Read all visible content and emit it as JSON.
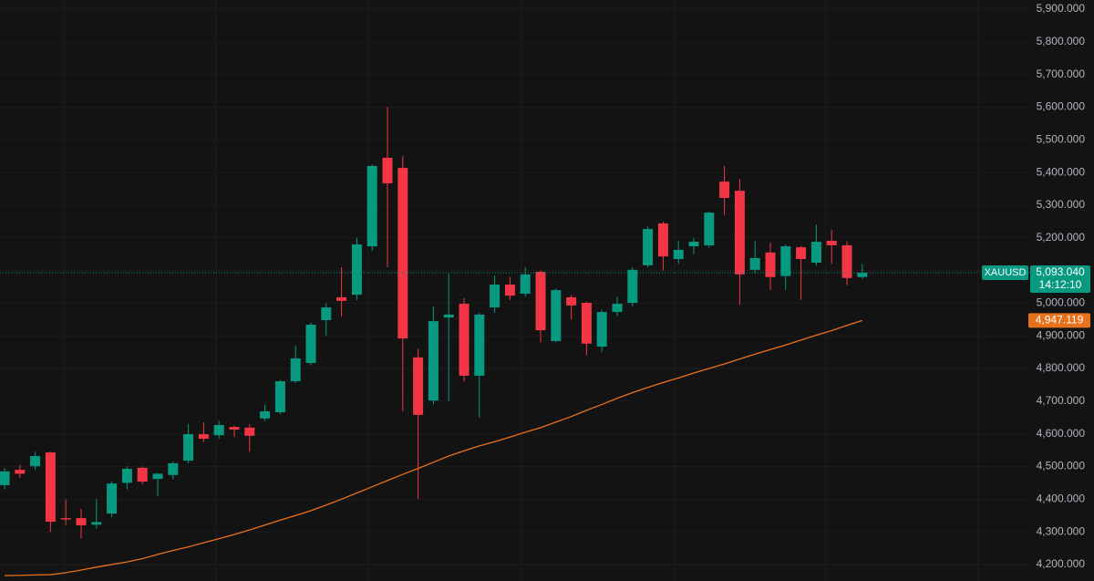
{
  "chart_data": {
    "type": "candlestick",
    "symbol": "XAUUSD",
    "countdown": "14:12:10",
    "categories": [
      null,
      null,
      null,
      null,
      null,
      null,
      null,
      null,
      null,
      null,
      null,
      null,
      null,
      null,
      null,
      null,
      null,
      null,
      null,
      null,
      null,
      null,
      null,
      null,
      null,
      null,
      null,
      null,
      null,
      null,
      null,
      null,
      null,
      null,
      null,
      null,
      null,
      null,
      null,
      null,
      null,
      null,
      null,
      null,
      null,
      null,
      null,
      null,
      null,
      null,
      null,
      null,
      null,
      null,
      null,
      null,
      null
    ],
    "open": [
      4443,
      4490,
      4501,
      4543,
      4342,
      4342,
      4322,
      4356,
      4450,
      4496,
      4462,
      4474,
      4518,
      4599,
      4596,
      4621,
      4619,
      4647,
      4666,
      4761,
      4817,
      4948,
      5018,
      5026,
      5174,
      5445,
      5414,
      4834,
      4702,
      4956,
      4998,
      4778,
      4987,
      5057,
      5029,
      5096,
      4884,
      5018,
      5001,
      4867,
      4973,
      5001,
      5116,
      5244,
      5135,
      5174,
      5177,
      5372,
      5344,
      5102,
      5155,
      5083,
      5171,
      5124,
      5191,
      5177,
      5080
    ],
    "high": [
      4495,
      4505,
      4545,
      4545,
      4400,
      4370,
      4400,
      4455,
      4500,
      4500,
      4480,
      4515,
      4630,
      4635,
      4640,
      4625,
      4630,
      4690,
      4765,
      4870,
      4940,
      5000,
      5110,
      5200,
      5425,
      5600,
      5450,
      4860,
      4990,
      5090,
      5015,
      4970,
      5085,
      5080,
      5110,
      5100,
      5045,
      5025,
      5005,
      4980,
      5020,
      5110,
      5235,
      5250,
      5190,
      5200,
      5280,
      5420,
      5380,
      5190,
      5185,
      5180,
      5175,
      5240,
      5225,
      5190,
      5120
    ],
    "low": [
      4430,
      4465,
      4490,
      4300,
      4320,
      4280,
      4310,
      4345,
      4430,
      4445,
      4410,
      4460,
      4510,
      4575,
      4585,
      4590,
      4545,
      4640,
      4660,
      4755,
      4810,
      4900,
      4960,
      5010,
      5160,
      5110,
      4670,
      4400,
      4690,
      4700,
      4760,
      4650,
      4970,
      5010,
      5020,
      4880,
      4880,
      4950,
      4840,
      4850,
      4960,
      4990,
      5110,
      5100,
      5120,
      5150,
      5170,
      5270,
      4995,
      5090,
      5040,
      5040,
      5010,
      5115,
      5120,
      5055,
      5075
    ],
    "close": [
      4485,
      4478,
      4532,
      4331,
      4338,
      4320,
      4330,
      4448,
      4493,
      4454,
      4478,
      4510,
      4599,
      4585,
      4627,
      4613,
      4594,
      4669,
      4761,
      4831,
      4934,
      4987,
      5007,
      5180,
      5420,
      5367,
      4892,
      4658,
      4945,
      4965,
      4778,
      4965,
      5057,
      5023,
      5088,
      4917,
      5040,
      4993,
      4876,
      4973,
      4998,
      5102,
      5227,
      5143,
      5163,
      5188,
      5277,
      5322,
      5088,
      5138,
      5080,
      5174,
      5135,
      5188,
      5177,
      5077,
      5093.04
    ],
    "up_color": "#089981",
    "down_color": "#f23645",
    "ma": {
      "color": "#e8711c",
      "values": [
        4166,
        4167,
        4168,
        4169,
        4175,
        4183,
        4192,
        4200,
        4208,
        4218,
        4231,
        4243,
        4254,
        4267,
        4279,
        4292,
        4306,
        4321,
        4336,
        4350,
        4365,
        4382,
        4400,
        4419,
        4438,
        4457,
        4476,
        4494,
        4513,
        4532,
        4548,
        4563,
        4576,
        4590,
        4605,
        4619,
        4636,
        4653,
        4672,
        4690,
        4709,
        4726,
        4742,
        4757,
        4771,
        4786,
        4800,
        4814,
        4829,
        4844,
        4858,
        4872,
        4887,
        4902,
        4916,
        4932,
        4947.119
      ],
      "last_label": {
        "value": 4947.119,
        "label": "4,947.119"
      }
    },
    "last_price": {
      "value": 5093.04,
      "label": "5,093.040"
    },
    "ylim": [
      4149.6,
      5927.9
    ],
    "yticks": [
      {
        "value": 4200,
        "label": "4,200.000"
      },
      {
        "value": 4300,
        "label": "4,300.000"
      },
      {
        "value": 4400,
        "label": "4,400.000"
      },
      {
        "value": 4500,
        "label": "4,500.000"
      },
      {
        "value": 4600,
        "label": "4,600.000"
      },
      {
        "value": 4700,
        "label": "4,700.000"
      },
      {
        "value": 4800,
        "label": "4,800.000"
      },
      {
        "value": 4900,
        "label": "4,900.000"
      },
      {
        "value": 5000,
        "label": "5,000.000"
      },
      {
        "value": 5100,
        "label": "5,100.000"
      },
      {
        "value": 5200,
        "label": "5,200.000"
      },
      {
        "value": 5300,
        "label": "5,300.000"
      },
      {
        "value": 5400,
        "label": "5,400.000"
      },
      {
        "value": 5500,
        "label": "5,500.000"
      },
      {
        "value": 5600,
        "label": "5,600.000"
      },
      {
        "value": 5700,
        "label": "5,700.000"
      },
      {
        "value": 5800,
        "label": "5,800.000"
      },
      {
        "value": 5900,
        "label": "5,900.000"
      }
    ],
    "grid": true
  }
}
